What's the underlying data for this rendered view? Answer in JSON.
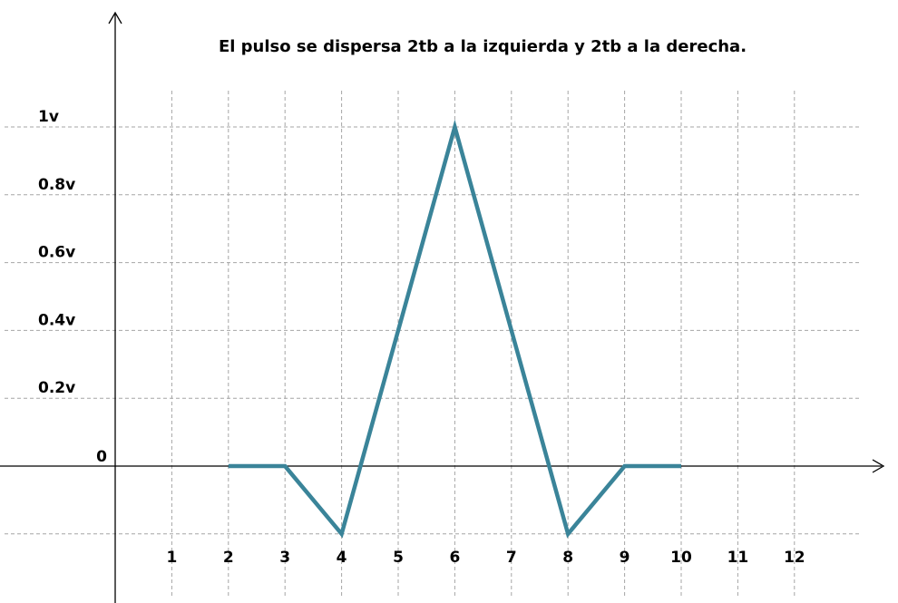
{
  "chart_data": {
    "type": "line",
    "title": "El pulso se dispersa 2tb a la izquierda y 2tb a la derecha.",
    "xlabel": "",
    "ylabel": "",
    "x_ticks": [
      "1",
      "2",
      "3",
      "4",
      "5",
      "6",
      "7",
      "8",
      "9",
      "10",
      "11",
      "12"
    ],
    "y_ticks": [
      {
        "value": 0,
        "label": "0"
      },
      {
        "value": 0.2,
        "label": "0.2v"
      },
      {
        "value": 0.4,
        "label": "0.4v"
      },
      {
        "value": 0.6,
        "label": "0.6v"
      },
      {
        "value": 0.8,
        "label": "0.8v"
      },
      {
        "value": 1,
        "label": "1v"
      }
    ],
    "xlim": [
      0,
      13.3
    ],
    "ylim": [
      -0.4,
      1.3
    ],
    "grid": true,
    "series": [
      {
        "color": "#3a8499",
        "points": [
          {
            "x": 2,
            "y": 0
          },
          {
            "x": 3,
            "y": 0
          },
          {
            "x": 4,
            "y": -0.2
          },
          {
            "x": 6,
            "y": 1
          },
          {
            "x": 8,
            "y": -0.2
          },
          {
            "x": 9,
            "y": 0
          },
          {
            "x": 10,
            "y": 0
          }
        ]
      }
    ],
    "colors": {
      "axis": "#000000",
      "grid": "#a6a6a6",
      "line": "#3a8499"
    }
  }
}
